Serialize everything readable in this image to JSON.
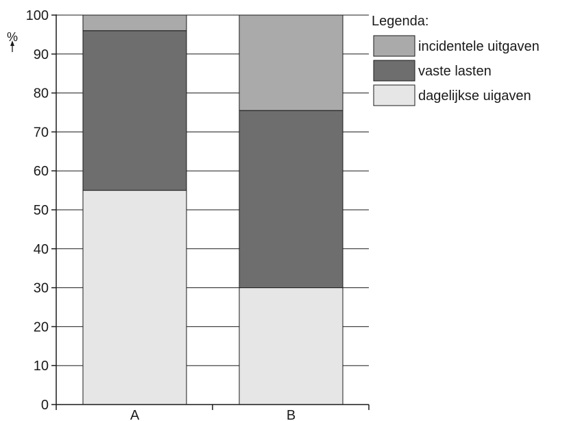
{
  "chart_data": {
    "type": "bar",
    "stacked": true,
    "categories": [
      "A",
      "B"
    ],
    "series": [
      {
        "name": "dagelijkse uigaven",
        "values": [
          55,
          30
        ],
        "color": "#e6e6e6"
      },
      {
        "name": "vaste lasten",
        "values": [
          41,
          45.5
        ],
        "color": "#6e6e6e"
      },
      {
        "name": "incidentele uitgaven",
        "values": [
          4,
          24.5
        ],
        "color": "#aaaaaa"
      }
    ],
    "ylabel": "%",
    "ylim": [
      0,
      100
    ],
    "yticks": [
      0,
      10,
      20,
      30,
      40,
      50,
      60,
      70,
      80,
      90,
      100
    ],
    "grid": true,
    "legend_title": "Legenda:",
    "legend_position": "top-right",
    "legend_order": [
      "incidentele uitgaven",
      "vaste lasten",
      "dagelijkse uigaven"
    ]
  }
}
